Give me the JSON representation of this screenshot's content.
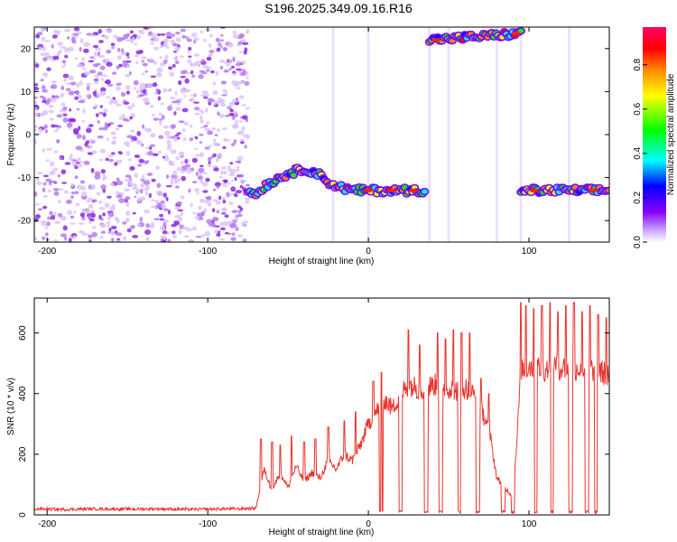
{
  "title": "S196.2025.349.09.16.R16",
  "colors": {
    "snr_line": "#e8332d",
    "frame": "#000000",
    "background": "#ffffff",
    "colormap": [
      "#ffffff",
      "#8800ff",
      "#0000ff",
      "#00ffff",
      "#00ff00",
      "#ffff00",
      "#ff8800",
      "#ff0000",
      "#ff0066"
    ]
  },
  "chart_data": [
    {
      "type": "heatmap",
      "title": "S196.2025.349.09.16.R16",
      "xlabel": "Height of straight line (km)",
      "ylabel": "Frequency (Hz)",
      "xlim": [
        -208,
        150
      ],
      "ylim": [
        -25,
        25
      ],
      "xticks": [
        -200,
        -100,
        0,
        100
      ],
      "xtick_labels": [
        "-200",
        "-100",
        "0",
        "100"
      ],
      "yticks": [
        -20,
        -10,
        0,
        10,
        20
      ],
      "ytick_labels": [
        "-20",
        "-10",
        "0",
        "10",
        "20"
      ],
      "colorbar": {
        "label": "Normalized spectral amplitude",
        "range": [
          0,
          0.97
        ],
        "ticks": [
          0,
          0.2,
          0.4,
          0.6,
          0.8
        ],
        "tick_labels": [
          "0.0",
          "0.2",
          "0.4",
          "0.6",
          "0.8"
        ]
      },
      "noise_region_x": [
        -208,
        -75
      ],
      "signal_track": {
        "x": [
          -75,
          -70,
          -65,
          -60,
          -55,
          -50,
          -45,
          -40,
          -35,
          -30,
          -25,
          -20,
          -15,
          -10,
          -5,
          0,
          5,
          10,
          15,
          20,
          25,
          30,
          35
        ],
        "y": [
          -13,
          -14,
          -12,
          -11,
          -10,
          -9,
          -8.5,
          -8,
          -8.5,
          -9.5,
          -11,
          -12,
          -12.5,
          -13,
          -13,
          -13,
          -13,
          -13,
          -13,
          -13,
          -13,
          -13,
          -13
        ]
      },
      "upper_track": {
        "x": [
          38,
          95
        ],
        "y": [
          22,
          23.5
        ]
      },
      "right_track": {
        "x": [
          95,
          150
        ],
        "y": [
          -13,
          -13
        ]
      }
    },
    {
      "type": "line",
      "xlabel": "Height of straight line (km)",
      "ylabel": "SNR (10 * v/v)",
      "xlim": [
        -208,
        150
      ],
      "ylim": [
        0,
        715
      ],
      "xticks": [
        -200,
        -100,
        0,
        100
      ],
      "xtick_labels": [
        "-200",
        "-100",
        "0",
        "100"
      ],
      "yticks": [
        0,
        200,
        400,
        600
      ],
      "ytick_labels": [
        "0",
        "200",
        "400",
        "600"
      ],
      "series": [
        {
          "x": [
            -208,
            -190,
            -170,
            -150,
            -130,
            -110,
            -90,
            -80,
            -70,
            -65,
            -60,
            -55,
            -50,
            -45,
            -40,
            -35,
            -30,
            -25,
            -20,
            -15,
            -10,
            -5,
            0,
            5,
            10,
            15,
            20,
            25,
            30,
            35,
            40,
            45,
            50,
            55,
            60,
            65,
            70,
            75,
            80,
            85,
            90,
            92,
            95,
            100,
            105,
            110,
            115,
            120,
            125,
            130,
            135,
            140,
            145,
            150
          ],
          "y": [
            20,
            18,
            20,
            19,
            20,
            18,
            20,
            20,
            22,
            150,
            80,
            140,
            90,
            160,
            110,
            140,
            120,
            180,
            150,
            200,
            180,
            230,
            300,
            340,
            380,
            350,
            400,
            430,
            420,
            410,
            430,
            425,
            420,
            410,
            420,
            400,
            350,
            290,
            120,
            90,
            60,
            200,
            480,
            490,
            485,
            480,
            490,
            485,
            480,
            485,
            475,
            480,
            470,
            460
          ]
        }
      ],
      "spikes": [
        {
          "x": -67,
          "y": 250
        },
        {
          "x": -60,
          "y": 240
        },
        {
          "x": -55,
          "y": 230
        },
        {
          "x": -48,
          "y": 260
        },
        {
          "x": -40,
          "y": 240
        },
        {
          "x": -33,
          "y": 250
        },
        {
          "x": -25,
          "y": 290
        },
        {
          "x": -15,
          "y": 310
        },
        {
          "x": -8,
          "y": 340
        },
        {
          "x": 3,
          "y": 440
        },
        {
          "x": 8,
          "y": 470
        },
        {
          "x": 25,
          "y": 610
        },
        {
          "x": 32,
          "y": 560
        },
        {
          "x": 43,
          "y": 600
        },
        {
          "x": 48,
          "y": 580
        },
        {
          "x": 53,
          "y": 610
        },
        {
          "x": 58,
          "y": 600
        },
        {
          "x": 63,
          "y": 600
        },
        {
          "x": 70,
          "y": 450
        },
        {
          "x": 75,
          "y": 400
        },
        {
          "x": 95,
          "y": 700
        },
        {
          "x": 98,
          "y": 690
        },
        {
          "x": 103,
          "y": 680
        },
        {
          "x": 108,
          "y": 690
        },
        {
          "x": 113,
          "y": 700
        },
        {
          "x": 118,
          "y": 670
        },
        {
          "x": 123,
          "y": 690
        },
        {
          "x": 128,
          "y": 700
        },
        {
          "x": 133,
          "y": 670
        },
        {
          "x": 138,
          "y": 690
        },
        {
          "x": 143,
          "y": 660
        },
        {
          "x": 148,
          "y": 650
        }
      ],
      "dropouts_x": [
        8,
        20,
        36,
        45,
        57,
        68,
        84,
        90,
        104,
        114,
        126,
        136,
        142
      ]
    }
  ]
}
